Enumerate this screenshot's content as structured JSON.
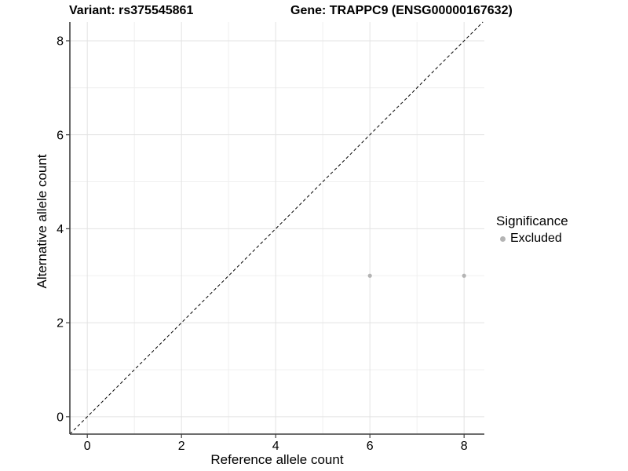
{
  "chart_data": {
    "type": "scatter",
    "title_variant": "Variant: rs375545861",
    "title_gene": "Gene: TRAPPC9 (ENSG00000167632)",
    "xlabel": "Reference allele count",
    "ylabel": "Alternative allele count",
    "xlim": [
      -0.37,
      8.43
    ],
    "ylim": [
      -0.37,
      8.4
    ],
    "x_ticks": [
      0,
      2,
      4,
      6,
      8
    ],
    "y_ticks": [
      0,
      2,
      4,
      6,
      8
    ],
    "x_minor_gridlines": [
      1,
      3,
      5,
      7
    ],
    "y_minor_gridlines": [
      1,
      3,
      5,
      7
    ],
    "grid": true,
    "legend_position": "right",
    "identity_line": {
      "equation": "y = x",
      "style": "dashed",
      "color": "#000000"
    },
    "series": [
      {
        "name": "Excluded",
        "color": "#b4b4b4",
        "points": [
          {
            "x": 6,
            "y": 3
          },
          {
            "x": 8,
            "y": 3
          }
        ]
      }
    ],
    "legend": {
      "title": "Significance",
      "entries": [
        {
          "label": "Excluded",
          "color": "#b4b4b4"
        }
      ]
    }
  },
  "style_colors": {
    "axis_line": "#3f3f3f",
    "tick_mark": "#3f3f3f",
    "major_grid": "#e3e3e3",
    "minor_grid": "#f0f0f0",
    "text": "#000000",
    "background": "#ffffff"
  }
}
